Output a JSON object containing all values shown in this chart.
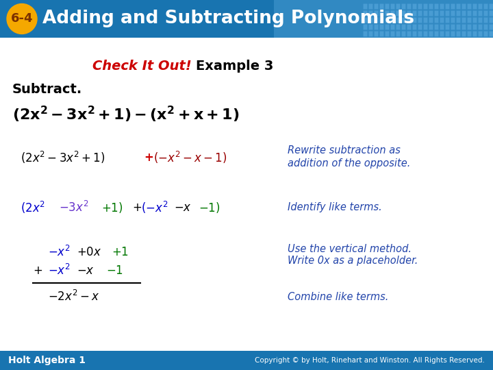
{
  "title_badge": "6-4",
  "title_text": "Adding and Subtracting Polynomials",
  "header_bg_color": "#1874b0",
  "header_bg_color2": "#4a9fd4",
  "badge_bg_color": "#f5a800",
  "badge_text_color": "#7B3000",
  "check_it_out_color": "#cc0000",
  "footer_left": "Holt Algebra 1",
  "footer_right": "Copyright © by Holt, Rinehart and Winston. All Rights Reserved.",
  "footer_bg": "#1874b0",
  "bg_color": "#ffffff",
  "blue_color": "#0000cc",
  "green_color": "#007700",
  "red_color": "#cc0000",
  "purple_color": "#6633cc",
  "dark_blue_italic": "#2244aa",
  "black": "#000000",
  "white": "#ffffff"
}
